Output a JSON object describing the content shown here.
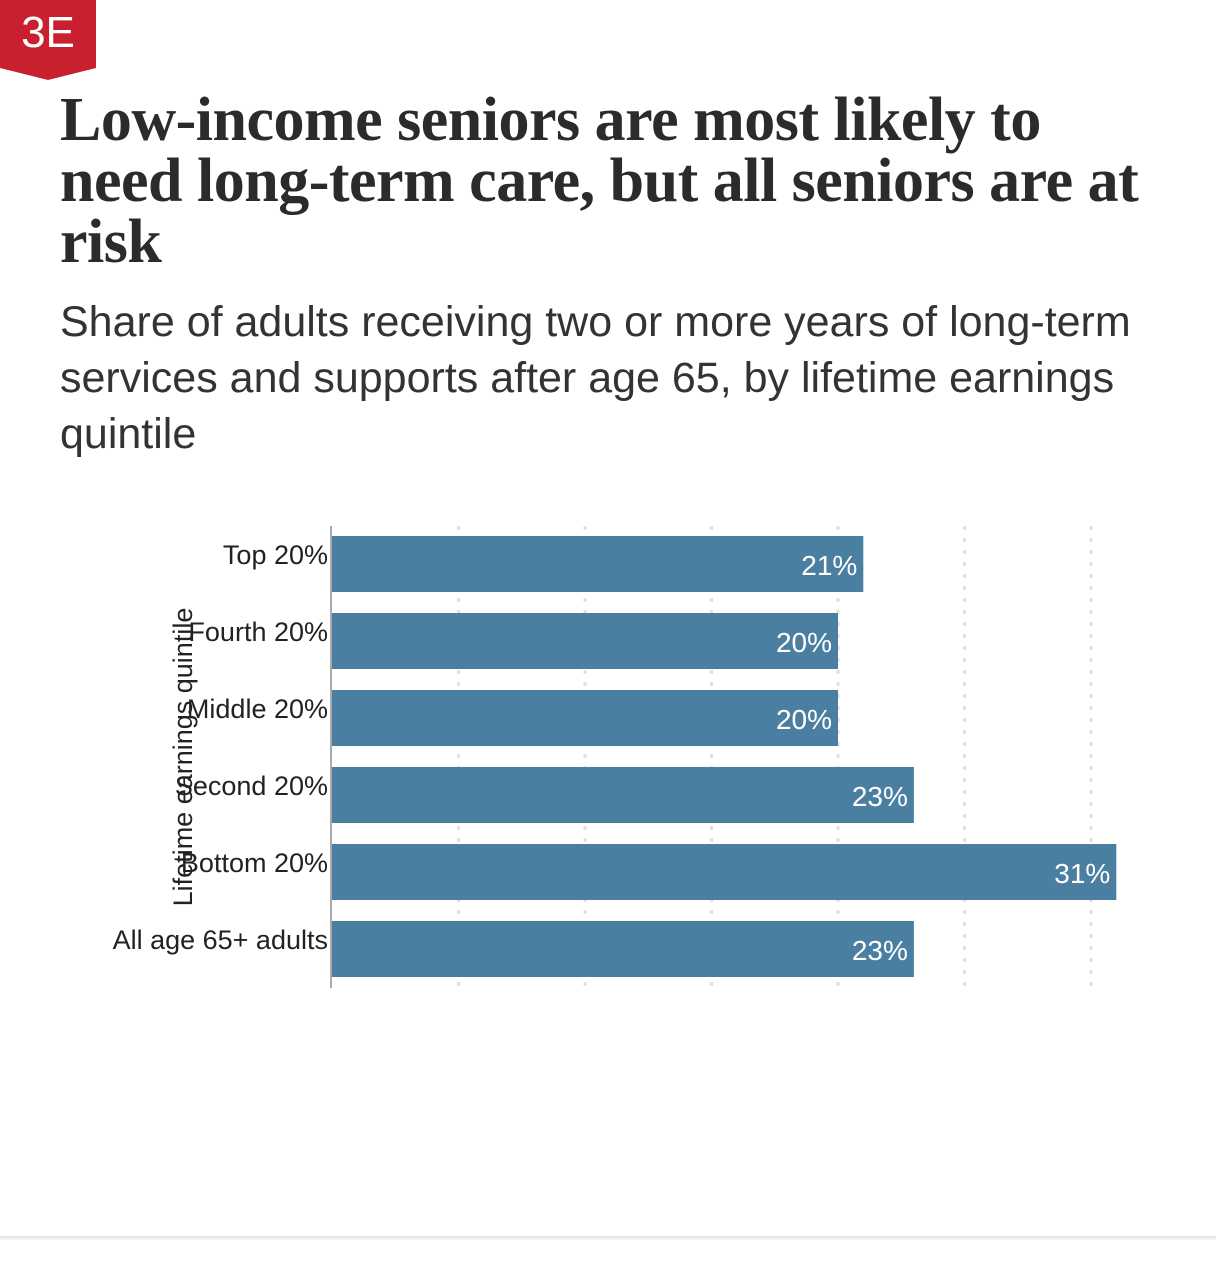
{
  "badge": {
    "label": "3E",
    "color": "#c8202f"
  },
  "header": {
    "title": "Low-income seniors are most likely to need long-term care, but all seniors are at risk",
    "subtitle": "Share of adults receiving two or more years of long-term services and supports after age 65, by lifetime earnings quintile"
  },
  "colors": {
    "bar": "#4a7fa1",
    "grid": "#e0e0e0",
    "axis": "#aaaaaa",
    "label_text": "#ffffff",
    "tick_text": "#222222"
  },
  "chart_data": {
    "type": "bar",
    "orientation": "horizontal",
    "categories": [
      "Top 20%",
      "Fourth 20%",
      "Middle 20%",
      "Second 20%",
      "Bottom 20%",
      "All age 65+ adults"
    ],
    "values": [
      21,
      20,
      20,
      23,
      31,
      23
    ],
    "data_labels": [
      "21%",
      "20%",
      "20%",
      "23%",
      "31%",
      "23%"
    ],
    "ylabel": "Lifetime earnings quintile",
    "xlabel": "",
    "xlim": [
      0,
      31
    ],
    "grid": true,
    "gridlines": [
      5,
      10,
      15,
      20,
      25,
      30
    ]
  }
}
